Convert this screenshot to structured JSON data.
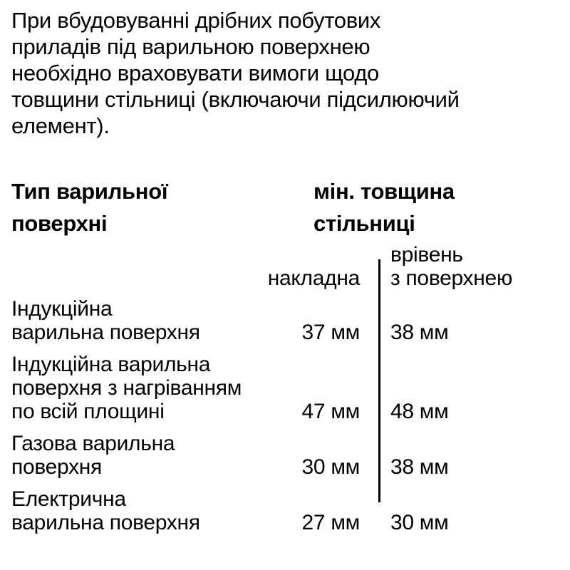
{
  "page": {
    "background": "#ffffff",
    "text_color": "#000000"
  },
  "intro_paragraph": "При вбудовуванні дрібних побутових\nприладів під варильною поверхнею\nнеобхідно враховувати вимоги щодо\nтовщини стільниці (включаючи підсилюючий\nелемент).",
  "table": {
    "col1_header": "Тип варильної\nповерхні",
    "col2_header": "мін. товщина\nстільниці",
    "sub_headers": {
      "overlay": "накладна",
      "flush": "врівень\nз поверхнею"
    },
    "rows": [
      {
        "type": "Індукційна\nварильна поверхня",
        "overlay_value": "37 мм",
        "flush_value": "38 мм"
      },
      {
        "type": "Індукційна варильна\nповерхня з нагріванням\nпо всій площині",
        "overlay_value": "47 мм",
        "flush_value": "48 мм"
      },
      {
        "type": "Газова варильна\nповерхня",
        "overlay_value": "30 мм",
        "flush_value": "38 мм"
      },
      {
        "type": "Електрична\nварильна поверхня",
        "overlay_value": "27 мм",
        "flush_value": "30 мм"
      }
    ]
  }
}
